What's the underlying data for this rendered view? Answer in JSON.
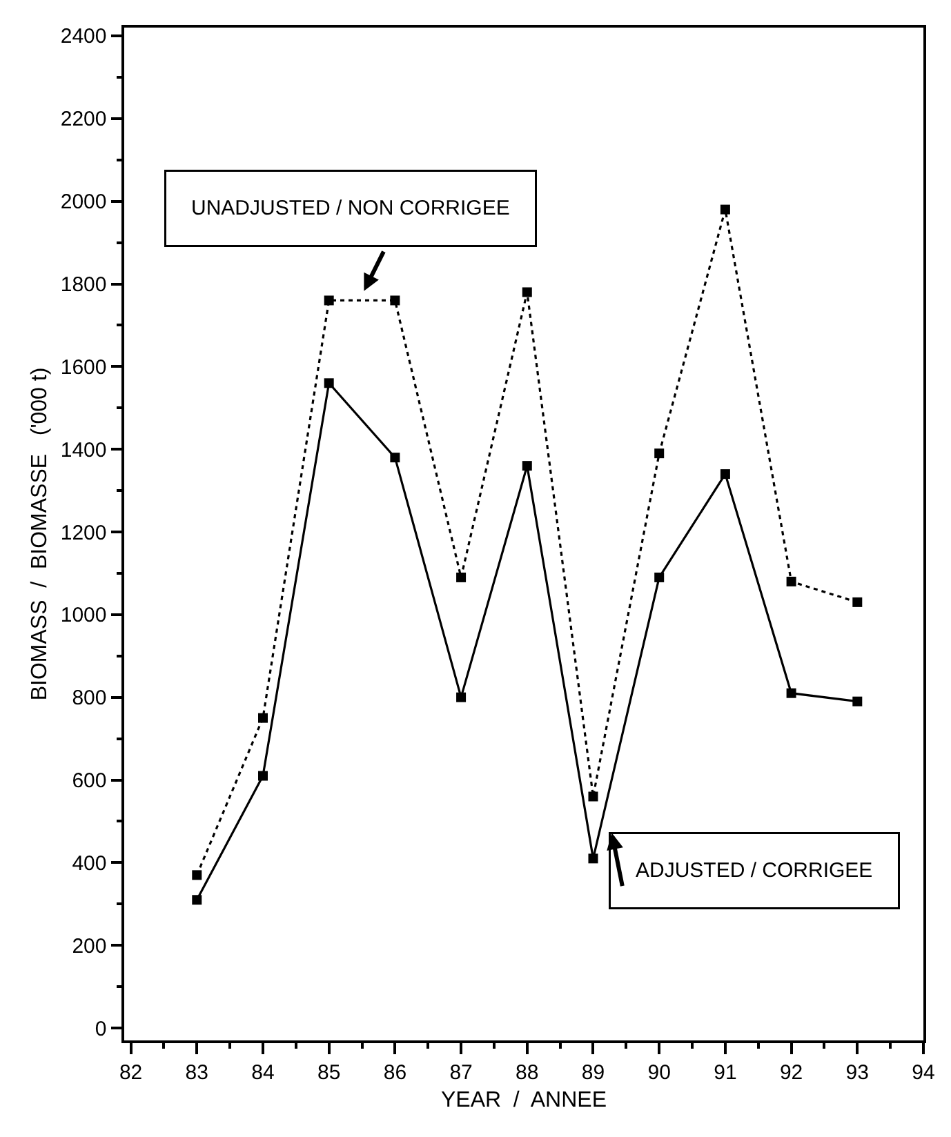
{
  "chart_data": {
    "type": "line",
    "xlabel": "YEAR  /  ANNEE",
    "ylabel": "BIOMASS  /  BIOMASSE   ('000 t)",
    "x": [
      83,
      84,
      85,
      86,
      87,
      88,
      89,
      90,
      91,
      92,
      93
    ],
    "series": [
      {
        "color": "#000000",
        "line_style": "dotted",
        "values": [
          370,
          750,
          1760,
          1760,
          1090,
          1780,
          560,
          1390,
          1980,
          1080,
          1030
        ]
      },
      {
        "color": "#000000",
        "line_style": "solid",
        "values": [
          310,
          610,
          1560,
          1380,
          800,
          1360,
          410,
          1090,
          1340,
          810,
          790
        ]
      }
    ],
    "marker": "square",
    "xlim": [
      81.9,
      94
    ],
    "xticks": [
      82,
      83,
      84,
      85,
      86,
      87,
      88,
      89,
      90,
      91,
      92,
      93,
      94
    ],
    "ylim": [
      -30,
      2420
    ],
    "yticks": [
      0,
      200,
      400,
      600,
      800,
      1000,
      1200,
      1400,
      1600,
      1800,
      2000,
      2200,
      2400
    ],
    "annotations": [
      "UNADJUSTED / NON CORRIGEE",
      "ADJUSTED / CORRIGEE"
    ],
    "legend": false
  }
}
